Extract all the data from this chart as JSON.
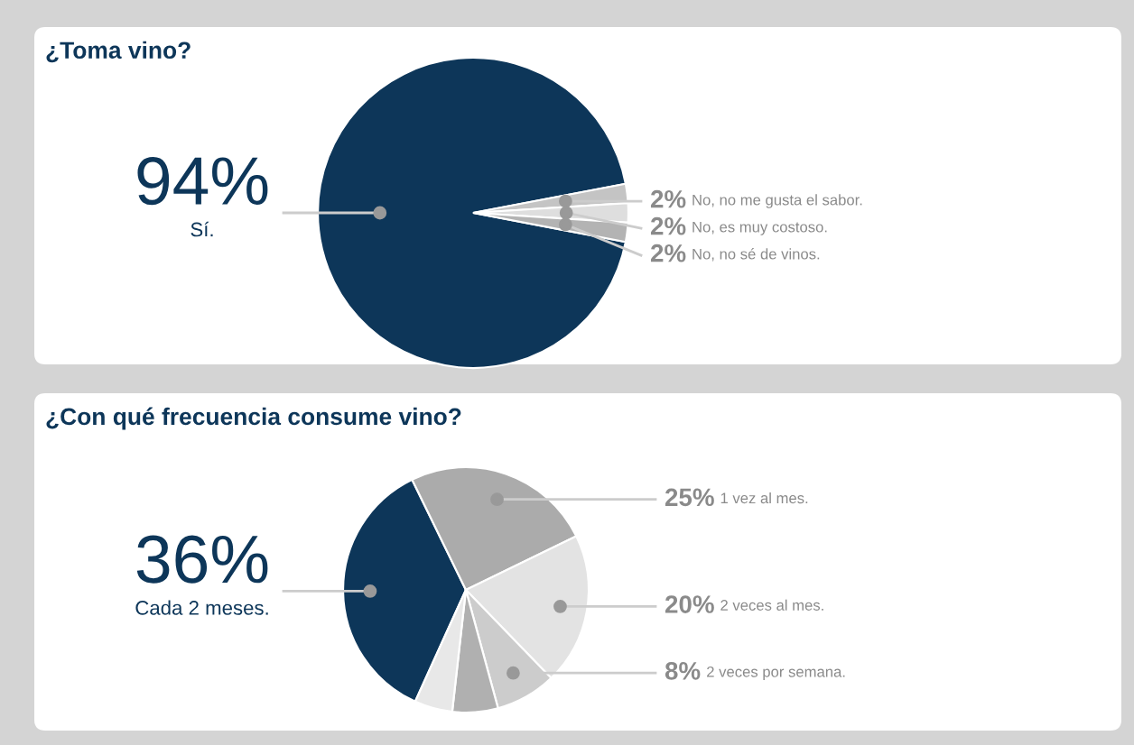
{
  "chart_data": [
    {
      "type": "pie",
      "title": "¿Toma vino?",
      "categories": [
        "Sí.",
        "No, no me gusta el sabor.",
        "No, es muy costoso.",
        "No, no sé de vinos."
      ],
      "values": [
        94,
        2,
        2,
        2
      ],
      "colors": [
        "#0d3659",
        "#c4c4c4",
        "#dedede",
        "#b3b3b3"
      ],
      "value_labels": [
        "94%",
        "2%",
        "2%",
        "2%"
      ]
    },
    {
      "type": "pie",
      "title": "¿Con qué frecuencia consume vino?",
      "categories": [
        "Cada 2 meses.",
        "1 vez al mes.",
        "2 veces al mes.",
        "2 veces por semana.",
        null,
        null
      ],
      "values": [
        36,
        25,
        20,
        8,
        6,
        5
      ],
      "colors": [
        "#0d3659",
        "#ababab",
        "#e3e3e3",
        "#cccccc",
        "#b0b0b0",
        "#e8e8e8"
      ],
      "value_labels": [
        "36%",
        "25%",
        "20%",
        "8%",
        null,
        null
      ]
    }
  ]
}
